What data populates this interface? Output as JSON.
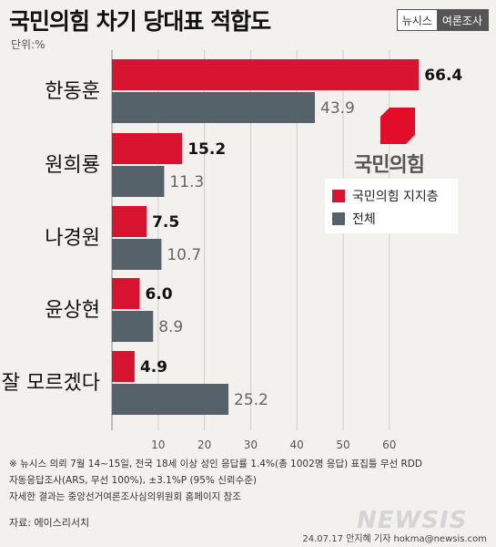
{
  "header": {
    "title": "국민의힘 차기 당대표 적합도",
    "logo_left": "뉴시스",
    "logo_right": "여론조사"
  },
  "unit_label": "단위:%",
  "legend": {
    "supporters": "국민의힘 지지층",
    "overall": "전체"
  },
  "party_name": "국민의힘",
  "colors": {
    "supporters": "#d7132f",
    "overall": "#56626a",
    "party_emblem": "#e30d29"
  },
  "chart_data": {
    "type": "bar",
    "orientation": "horizontal",
    "categories": [
      "한동훈",
      "원희룡",
      "나경원",
      "윤상현",
      "잘 모르겠다"
    ],
    "series": [
      {
        "name": "국민의힘 지지층",
        "values": [
          66.4,
          15.2,
          7.5,
          6.0,
          4.9
        ]
      },
      {
        "name": "전체",
        "values": [
          43.9,
          11.3,
          10.7,
          8.9,
          25.2
        ]
      }
    ],
    "value_labels": {
      "supporters": [
        "66.4",
        "15.2",
        "7.5",
        "6.0",
        "4.9"
      ],
      "overall": [
        "43.9",
        "11.3",
        "10.7",
        "8.9",
        "25.2"
      ]
    },
    "xlim": [
      0,
      70
    ],
    "xticks": [
      10,
      20,
      30,
      40,
      50,
      60
    ],
    "grid": true,
    "legend_position": "right"
  },
  "notes": [
    "※ 뉴시스 의뢰 7월 14~15일, 전국 18세 이상 성인 응답률 1.4%(총 1002명 응답) 표집틀 무선 RDD",
    "자동응답조사(ARS, 무선 100%), ±3.1%P (95% 신뢰수준)",
    "자세한 결과는 중앙선거여론조사심의위원회 홈페이지 참조"
  ],
  "source": "자료: 에이스리서치",
  "watermark": "NEWSIS",
  "credit": "24.07.17 안지혜 기자 hokma@newsis.com"
}
